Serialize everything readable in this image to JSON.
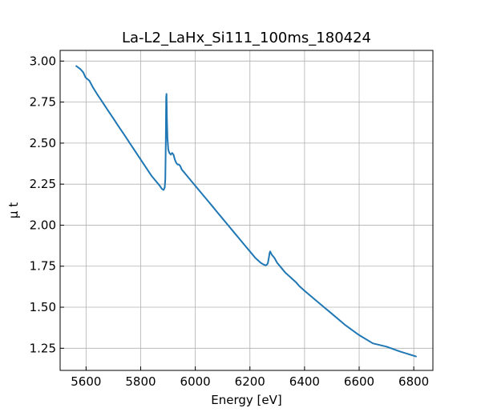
{
  "chart_data": {
    "type": "line",
    "title": "La-L2_LaHx_Si111_100ms_180424",
    "xlabel": "Energy [eV]",
    "ylabel": "μ t",
    "xlim": [
      5505,
      6870
    ],
    "ylim": [
      1.115,
      3.065
    ],
    "xticks": [
      5600,
      5800,
      6000,
      6200,
      6400,
      6600,
      6800
    ],
    "yticks": [
      1.25,
      1.5,
      1.75,
      2.0,
      2.25,
      2.5,
      2.75,
      3.0
    ],
    "xtick_labels": [
      "5600",
      "5800",
      "6000",
      "6200",
      "6400",
      "6600",
      "6800"
    ],
    "ytick_labels": [
      "1.25",
      "1.50",
      "1.75",
      "2.00",
      "2.25",
      "2.50",
      "2.75",
      "3.00"
    ],
    "grid": true,
    "line_color": "#1f77b4",
    "series": [
      {
        "x": [
          5564,
          5580,
          5590,
          5598,
          5605,
          5612,
          5625,
          5640,
          5660,
          5680,
          5700,
          5720,
          5740,
          5760,
          5780,
          5800,
          5820,
          5840,
          5860,
          5870,
          5878,
          5884,
          5888,
          5890,
          5892,
          5893.5,
          5894.5,
          5896,
          5898,
          5901,
          5905,
          5910,
          5915,
          5920,
          5925,
          5930,
          5935,
          5940,
          5945,
          5950,
          5955,
          5960,
          5965,
          5970,
          5975,
          5980,
          5985,
          5990,
          5995,
          6000,
          6010,
          6020,
          6030,
          6040,
          6060,
          6080,
          6100,
          6120,
          6140,
          6160,
          6180,
          6200,
          6220,
          6240,
          6250,
          6258,
          6263,
          6266,
          6269,
          6272,
          6274,
          6277,
          6280,
          6285,
          6290,
          6295,
          6300,
          6310,
          6320,
          6330,
          6340,
          6350,
          6360,
          6370,
          6380,
          6400,
          6450,
          6500,
          6550,
          6600,
          6650,
          6700,
          6750,
          6808
        ],
        "y": [
          2.97,
          2.95,
          2.93,
          2.9,
          2.89,
          2.88,
          2.84,
          2.8,
          2.75,
          2.7,
          2.65,
          2.6,
          2.55,
          2.5,
          2.45,
          2.4,
          2.35,
          2.3,
          2.26,
          2.24,
          2.22,
          2.215,
          2.23,
          2.28,
          2.5,
          2.78,
          2.8,
          2.65,
          2.53,
          2.46,
          2.44,
          2.43,
          2.44,
          2.43,
          2.4,
          2.38,
          2.37,
          2.37,
          2.36,
          2.34,
          2.33,
          2.32,
          2.31,
          2.3,
          2.29,
          2.28,
          2.27,
          2.26,
          2.25,
          2.24,
          2.22,
          2.2,
          2.18,
          2.16,
          2.12,
          2.08,
          2.04,
          2.0,
          1.96,
          1.92,
          1.88,
          1.84,
          1.8,
          1.77,
          1.76,
          1.755,
          1.76,
          1.77,
          1.8,
          1.83,
          1.84,
          1.83,
          1.82,
          1.81,
          1.8,
          1.785,
          1.77,
          1.75,
          1.73,
          1.71,
          1.695,
          1.68,
          1.665,
          1.65,
          1.63,
          1.6,
          1.53,
          1.46,
          1.39,
          1.33,
          1.28,
          1.26,
          1.23,
          1.2
        ]
      }
    ]
  }
}
